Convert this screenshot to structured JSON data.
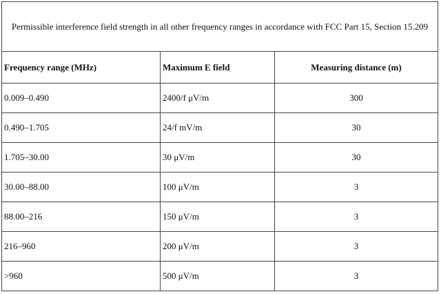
{
  "table": {
    "title": "Permissible interference field strength in all other frequency ranges in accordance with FCC Part 15, Section 15.209",
    "headers": [
      "Frequency range (MHz)",
      "Maximum E field",
      "Measuring distance (m)"
    ],
    "rows": [
      [
        "0.009–0.490",
        "2400/f μV/m",
        "300"
      ],
      [
        "0.490–1.705",
        "24/f mV/m",
        "30"
      ],
      [
        "1.705–30.00",
        "30 μV/m",
        "30"
      ],
      [
        "30.00–88.00",
        "100 μV/m",
        "3"
      ],
      [
        "88.00–216",
        "150 μV/m",
        "3"
      ],
      [
        "216–960",
        "200 μV/m",
        "3"
      ],
      [
        ">960",
        "500 μV/m",
        "3"
      ]
    ]
  }
}
